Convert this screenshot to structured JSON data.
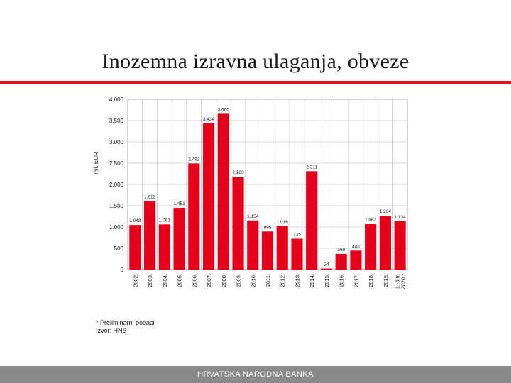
{
  "slide": {
    "title": "Inozemna izravna ulaganja, obveze",
    "footnote": "* Preliminarni podaci",
    "source": "Izvor: HNB",
    "footer": "HRVATSKA NARODNA BANKA"
  },
  "colors": {
    "bar": "#e4001a",
    "accent_rule": "#d71920",
    "footer_band": "#8a8a8a"
  },
  "chart_data": {
    "type": "bar",
    "ylabel": "mil. EUR",
    "ylim": [
      0,
      4000
    ],
    "yticks": [
      0,
      500,
      1000,
      1500,
      2000,
      2500,
      3000,
      3500,
      4000
    ],
    "ytick_labels": [
      "0",
      "500",
      "1.000",
      "1.500",
      "2.000",
      "2.500",
      "3.000",
      "3.500",
      "4.000"
    ],
    "grid": true,
    "categories": [
      "2002.",
      "2003.",
      "2004.",
      "2005.",
      "2006.",
      "2007.",
      "2008.",
      "2009.",
      "2010.",
      "2011.",
      "2012.",
      "2013.",
      "2014.",
      "2015.",
      "2016.",
      "2017.",
      "2018.",
      "2019.",
      "1.-3.tr. 2020.*"
    ],
    "values": [
      1048,
      1612,
      1061,
      1451,
      2492,
      3434,
      3660,
      2183,
      1154,
      895,
      1016,
      725,
      2311,
      24,
      369,
      445,
      1067,
      1264,
      1134
    ],
    "data_labels": [
      "1.048",
      "1.612",
      "1.061",
      "1.451",
      "2.492",
      "3.434",
      "3.660",
      "2.183",
      "1.154",
      "895",
      "1.016",
      "725",
      "2.311",
      "24",
      "369",
      "445",
      "1.067",
      "1.264",
      "1.134"
    ]
  }
}
